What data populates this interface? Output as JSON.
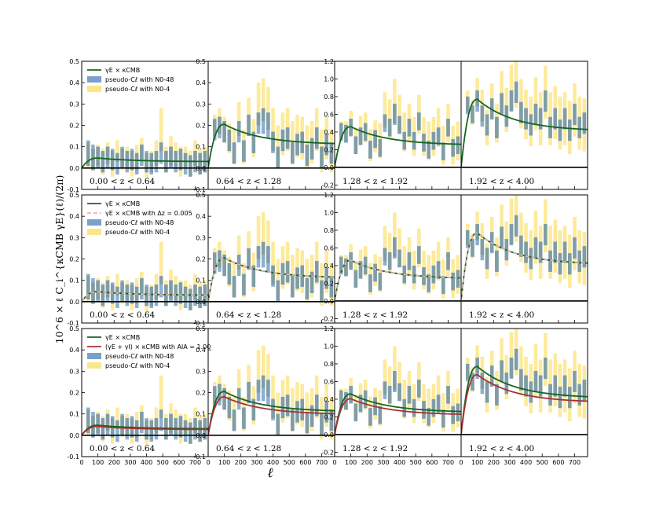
{
  "chart_data": {
    "type": "bar",
    "title": "",
    "xlabel": "ℓ",
    "ylabel": "10^6 × ℓ C_i^{κCMB γE}(ℓ)/(2π)",
    "xlim": [
      0,
      780
    ],
    "xticks": [
      0,
      100,
      200,
      300,
      400,
      500,
      600,
      700
    ],
    "bins_ell": [
      40,
      70,
      100,
      130,
      160,
      190,
      220,
      250,
      280,
      310,
      340,
      370,
      400,
      430,
      460,
      490,
      520,
      550,
      580,
      610,
      640,
      670,
      700,
      730,
      760
    ],
    "bin_half_width": 11,
    "zbins": [
      {
        "label": "0.00 < z < 0.64",
        "ylim": [
          -0.1,
          0.5
        ],
        "yticks": [
          -0.1,
          0.0,
          0.1,
          0.2,
          0.3,
          0.4,
          0.5
        ],
        "n048_center": [
          0.07,
          0.05,
          0.05,
          0.03,
          0.05,
          0.04,
          0.02,
          0.05,
          0.03,
          0.04,
          0.02,
          0.06,
          0.03,
          0.02,
          0.03,
          0.07,
          0.03,
          0.05,
          0.03,
          0.04,
          0.02,
          0.01,
          0.03,
          0.02,
          0.03
        ],
        "n048_halfwidth": [
          0.06,
          0.06,
          0.05,
          0.05,
          0.05,
          0.05,
          0.05,
          0.05,
          0.05,
          0.05,
          0.05,
          0.05,
          0.05,
          0.05,
          0.05,
          0.05,
          0.05,
          0.05,
          0.05,
          0.05,
          0.05,
          0.05,
          0.05,
          0.05,
          0.05
        ],
        "n04_center": [
          0.06,
          0.04,
          0.06,
          0.03,
          0.07,
          0.02,
          0.08,
          0.04,
          0.05,
          0.02,
          0.05,
          0.09,
          0.01,
          0.03,
          0.07,
          0.18,
          0.04,
          0.08,
          0.06,
          0.03,
          0.05,
          0.02,
          0.07,
          0.03,
          0.04
        ],
        "n04_halfwidth": [
          0.06,
          0.05,
          0.05,
          0.06,
          0.05,
          0.06,
          0.05,
          0.05,
          0.05,
          0.06,
          0.06,
          0.05,
          0.06,
          0.05,
          0.06,
          0.1,
          0.06,
          0.07,
          0.06,
          0.07,
          0.05,
          0.06,
          0.06,
          0.06,
          0.06
        ]
      },
      {
        "label": "0.64 < z < 1.28",
        "ylim": [
          -0.1,
          0.5
        ],
        "yticks": [
          -0.1,
          0.0,
          0.1,
          0.2,
          0.3,
          0.4,
          0.5
        ],
        "n048_center": [
          0.18,
          0.19,
          0.17,
          0.13,
          0.07,
          0.17,
          0.08,
          0.2,
          0.12,
          0.21,
          0.22,
          0.2,
          0.12,
          0.05,
          0.13,
          0.14,
          0.07,
          0.11,
          0.12,
          0.06,
          0.09,
          0.14,
          0.05,
          0.11,
          0.07
        ],
        "n048_halfwidth": [
          0.05,
          0.05,
          0.05,
          0.05,
          0.05,
          0.05,
          0.05,
          0.05,
          0.05,
          0.05,
          0.06,
          0.06,
          0.05,
          0.05,
          0.05,
          0.05,
          0.05,
          0.05,
          0.05,
          0.05,
          0.05,
          0.05,
          0.05,
          0.05,
          0.05
        ],
        "n04_center": [
          0.2,
          0.22,
          0.18,
          0.14,
          0.1,
          0.23,
          0.1,
          0.24,
          0.14,
          0.3,
          0.32,
          0.28,
          0.18,
          0.1,
          0.16,
          0.18,
          0.12,
          0.15,
          0.14,
          0.1,
          0.12,
          0.18,
          0.08,
          0.14,
          0.08
        ],
        "n04_halfwidth": [
          0.05,
          0.06,
          0.06,
          0.07,
          0.08,
          0.08,
          0.08,
          0.09,
          0.09,
          0.1,
          0.1,
          0.1,
          0.1,
          0.1,
          0.1,
          0.1,
          0.1,
          0.1,
          0.1,
          0.1,
          0.1,
          0.1,
          0.1,
          0.1,
          0.1
        ]
      },
      {
        "label": "1.28 < z < 1.92",
        "ylim": [
          -0.25,
          1.2
        ],
        "yticks": [
          -0.2,
          0.0,
          0.2,
          0.4,
          0.6,
          0.8,
          1.0,
          1.2
        ],
        "n048_center": [
          0.4,
          0.38,
          0.45,
          0.25,
          0.35,
          0.4,
          0.2,
          0.32,
          0.22,
          0.5,
          0.45,
          0.6,
          0.48,
          0.3,
          0.45,
          0.3,
          0.52,
          0.28,
          0.2,
          0.3,
          0.35,
          0.18,
          0.45,
          0.22,
          0.25
        ],
        "n048_halfwidth": [
          0.1,
          0.1,
          0.1,
          0.1,
          0.1,
          0.1,
          0.1,
          0.1,
          0.1,
          0.1,
          0.1,
          0.12,
          0.1,
          0.1,
          0.1,
          0.1,
          0.1,
          0.1,
          0.1,
          0.1,
          0.1,
          0.1,
          0.1,
          0.1,
          0.1
        ],
        "n04_center": [
          0.42,
          0.4,
          0.5,
          0.3,
          0.42,
          0.45,
          0.25,
          0.35,
          0.3,
          0.65,
          0.55,
          0.75,
          0.6,
          0.4,
          0.5,
          0.35,
          0.6,
          0.35,
          0.3,
          0.35,
          0.45,
          0.25,
          0.5,
          0.25,
          0.3
        ],
        "n04_halfwidth": [
          0.1,
          0.12,
          0.14,
          0.15,
          0.16,
          0.17,
          0.18,
          0.18,
          0.2,
          0.2,
          0.22,
          0.25,
          0.22,
          0.22,
          0.22,
          0.22,
          0.22,
          0.22,
          0.22,
          0.22,
          0.22,
          0.22,
          0.22,
          0.22,
          0.22
        ]
      },
      {
        "label": "1.92 < z < 4.00",
        "ylim": [
          -0.25,
          1.2
        ],
        "yticks": [],
        "n048_center": [
          0.7,
          0.6,
          0.75,
          0.58,
          0.48,
          0.66,
          0.45,
          0.72,
          0.58,
          0.75,
          0.85,
          0.62,
          0.55,
          0.48,
          0.6,
          0.55,
          0.75,
          0.45,
          0.55,
          0.42,
          0.55,
          0.42,
          0.6,
          0.45,
          0.5
        ],
        "n048_halfwidth": [
          0.1,
          0.1,
          0.12,
          0.12,
          0.12,
          0.12,
          0.12,
          0.12,
          0.12,
          0.12,
          0.12,
          0.12,
          0.12,
          0.12,
          0.12,
          0.12,
          0.12,
          0.12,
          0.12,
          0.12,
          0.12,
          0.12,
          0.12,
          0.12,
          0.12
        ],
        "n04_center": [
          0.75,
          0.62,
          0.85,
          0.7,
          0.45,
          0.75,
          0.5,
          0.85,
          0.65,
          0.9,
          0.95,
          0.72,
          0.6,
          0.52,
          0.72,
          0.55,
          0.85,
          0.55,
          0.62,
          0.5,
          0.55,
          0.45,
          0.65,
          0.5,
          0.48
        ],
        "n04_halfwidth": [
          0.12,
          0.14,
          0.16,
          0.18,
          0.2,
          0.2,
          0.22,
          0.24,
          0.25,
          0.26,
          0.28,
          0.28,
          0.28,
          0.28,
          0.3,
          0.3,
          0.3,
          0.3,
          0.3,
          0.3,
          0.3,
          0.3,
          0.3,
          0.3,
          0.3
        ]
      }
    ],
    "model_curve": {
      "peak_ell": 100,
      "amplitude": [
        0.047,
        0.205,
        0.46,
        0.77
      ],
      "tail": [
        0.03,
        0.11,
        0.25,
        0.41
      ],
      "ia_factor": 0.88
    },
    "rows": [
      {
        "legend": [
          "γE × κCMB",
          "pseudo-Cℓ with N0-48",
          "pseudo-Cℓ with N0-4"
        ],
        "curves": [
          "nominal"
        ]
      },
      {
        "legend": [
          "γE × κCMB",
          "γE × κCMB with Δz = 0.005",
          "pseudo-Cℓ with N0-48",
          "pseudo-Cℓ with N0-4"
        ],
        "curves": [
          "nominal",
          "dz"
        ]
      },
      {
        "legend": [
          "γE × κCMB",
          "(γE + γI) × κCMB with AIA = 1.00",
          "pseudo-Cℓ with N0-48",
          "pseudo-Cℓ with N0-4"
        ],
        "curves": [
          "nominal",
          "ia"
        ]
      }
    ],
    "colors": {
      "n048": "#7aa1c8",
      "n04": "#fde68a",
      "overlap": "#7f9ca3",
      "nominal": "#14661f",
      "ia": "#a83232",
      "dz": "#e8b4b8"
    }
  }
}
